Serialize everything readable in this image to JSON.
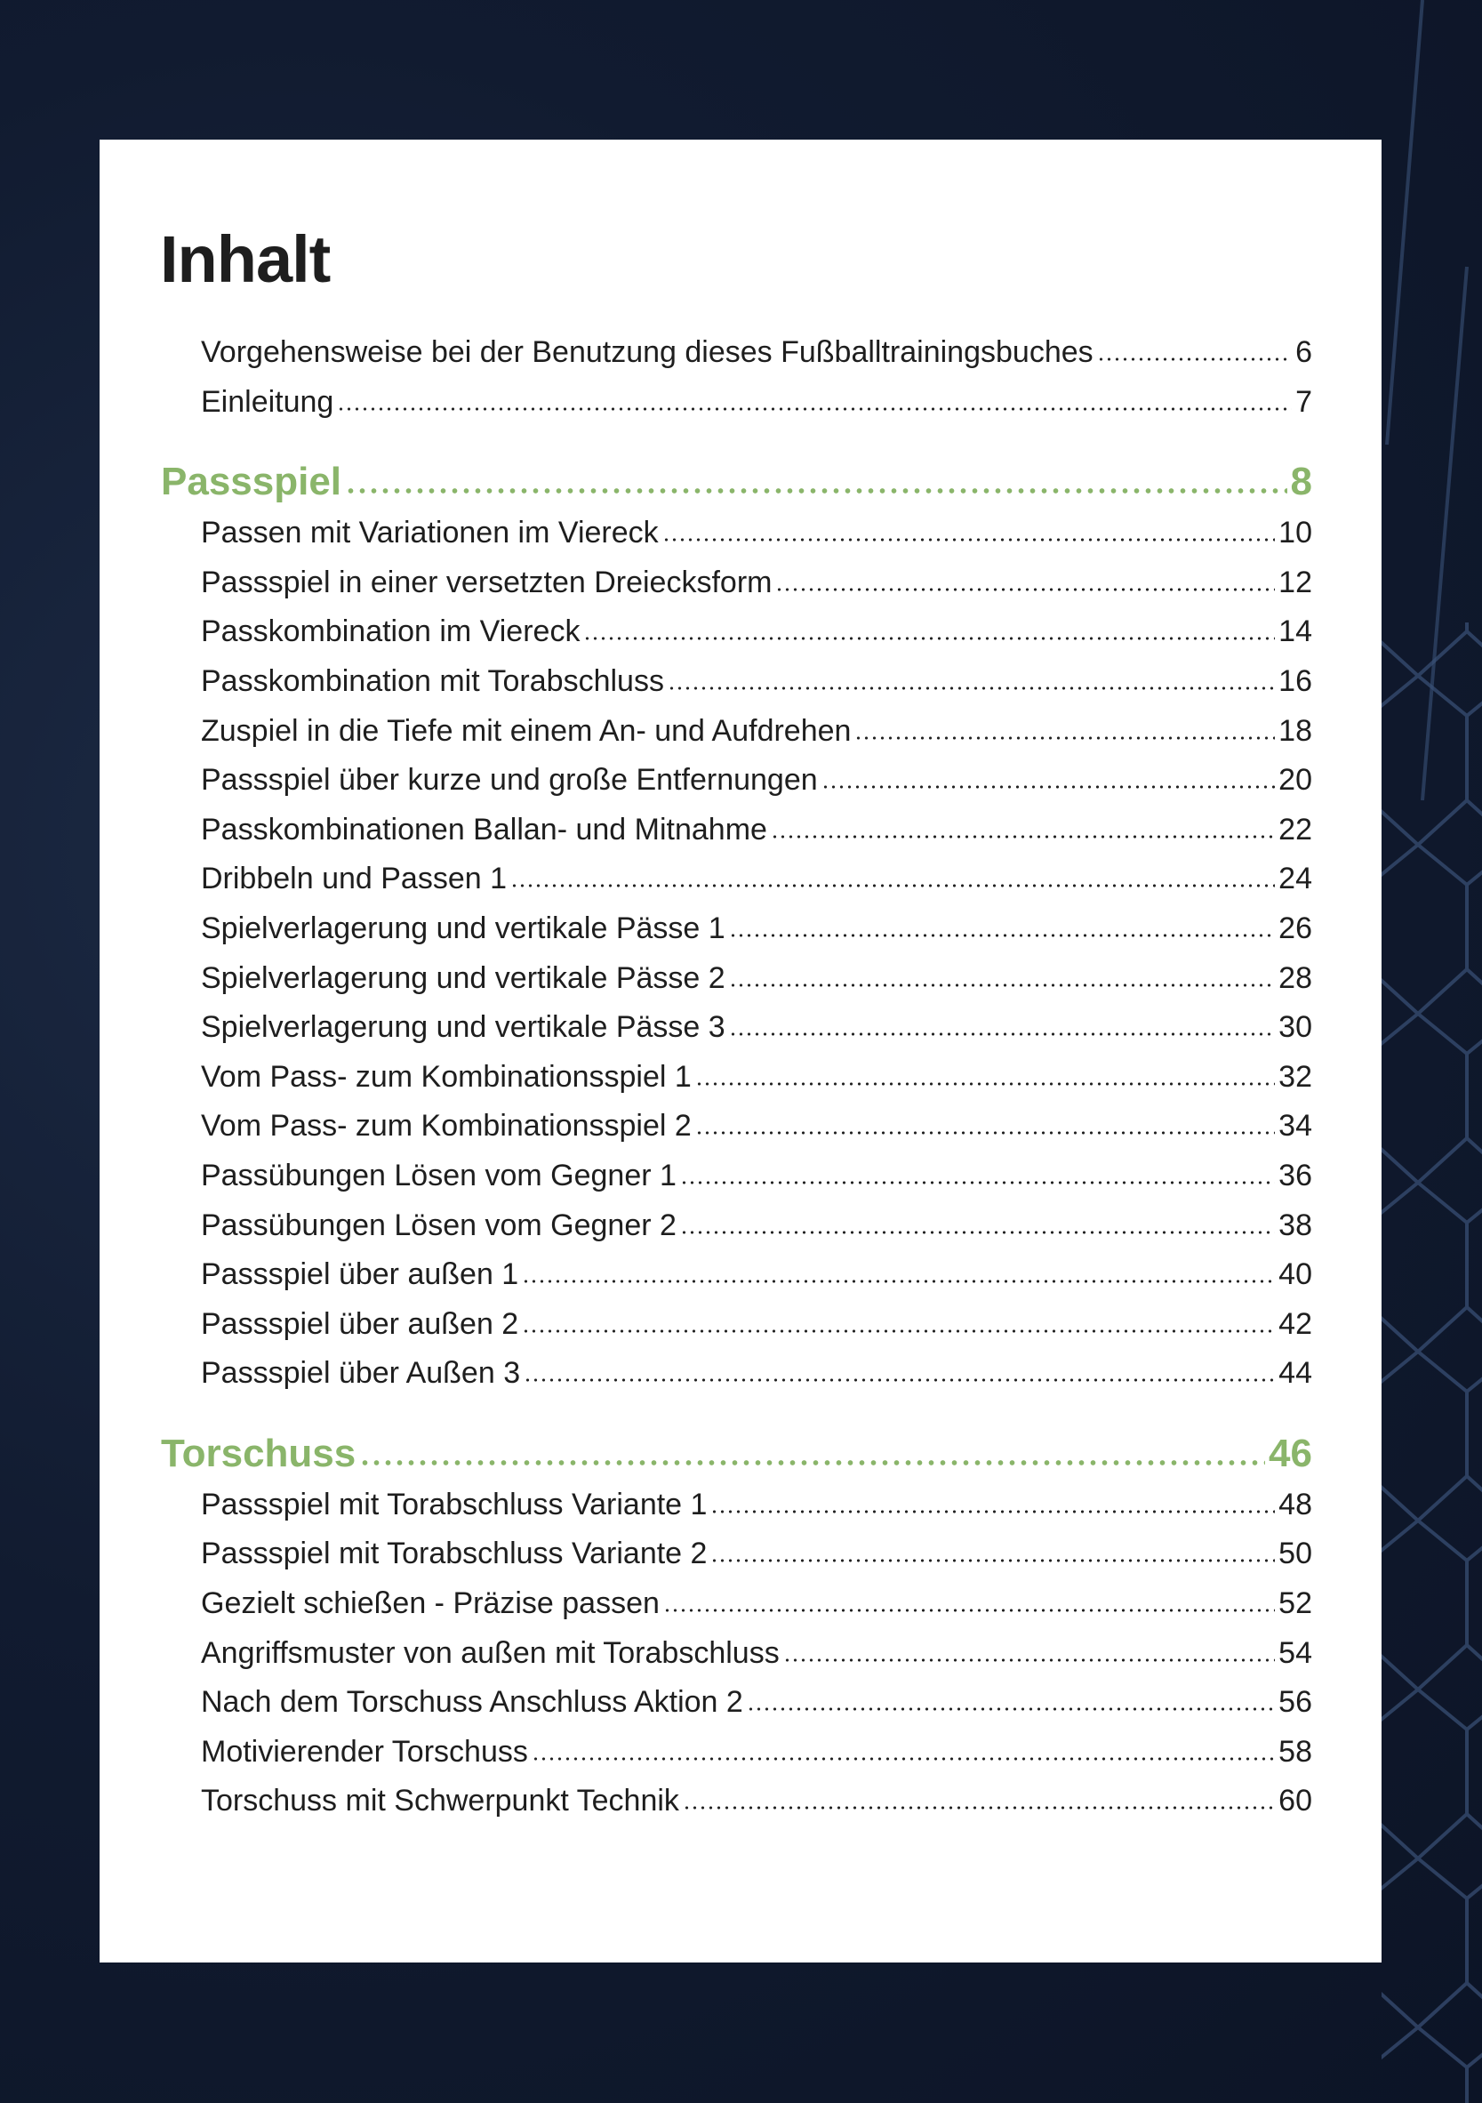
{
  "title": "Inhalt",
  "colors": {
    "section": "#8ab56a",
    "text": "#1e1e1e",
    "background": "#111b30"
  },
  "intro": [
    {
      "label": "Vorgehensweise bei der Benutzung dieses Fußballtrainingsbuches",
      "page": "6"
    },
    {
      "label": "Einleitung",
      "page": "7"
    }
  ],
  "sections": [
    {
      "label": "Passspiel",
      "page": "8",
      "entries": [
        {
          "label": "Passen mit Variationen im Viereck",
          "page": "10"
        },
        {
          "label": "Passspiel in einer versetzten Dreiecksform",
          "page": "12"
        },
        {
          "label": "Passkombination im Viereck",
          "page": "14"
        },
        {
          "label": "Passkombination mit Torabschluss",
          "page": "16"
        },
        {
          "label": "Zuspiel in die Tiefe mit einem An- und Aufdrehen",
          "page": "18"
        },
        {
          "label": "Passspiel über kurze und große Entfernungen",
          "page": "20"
        },
        {
          "label": "Passkombinationen Ballan- und Mitnahme",
          "page": "22"
        },
        {
          "label": "Dribbeln und Passen 1",
          "page": "24"
        },
        {
          "label": "Spielverlagerung und vertikale Pässe 1",
          "page": "26"
        },
        {
          "label": "Spielverlagerung und vertikale Pässe 2",
          "page": "28"
        },
        {
          "label": "Spielverlagerung und vertikale Pässe 3",
          "page": "30"
        },
        {
          "label": "Vom Pass- zum Kombinationsspiel 1",
          "page": "32"
        },
        {
          "label": "Vom Pass- zum Kombinationsspiel 2",
          "page": "34"
        },
        {
          "label": "Passübungen Lösen vom Gegner 1",
          "page": "36"
        },
        {
          "label": "Passübungen Lösen vom Gegner 2",
          "page": "38"
        },
        {
          "label": "Passspiel über außen 1",
          "page": "40"
        },
        {
          "label": "Passspiel über außen 2",
          "page": "42"
        },
        {
          "label": "Passspiel über Außen 3",
          "page": "44"
        }
      ]
    },
    {
      "label": "Torschuss",
      "page": "46",
      "entries": [
        {
          "label": "Passspiel mit Torabschluss Variante 1",
          "page": "48"
        },
        {
          "label": "Passspiel mit Torabschluss Variante 2",
          "page": "50"
        },
        {
          "label": "Gezielt schießen - Präzise passen",
          "page": "52"
        },
        {
          "label": "Angriffsmuster von außen mit Torabschluss",
          "page": "54"
        },
        {
          "label": "Nach dem Torschuss Anschluss Aktion 2",
          "page": "56"
        },
        {
          "label": "Motivierender Torschuss",
          "page": "58"
        },
        {
          "label": "Torschuss mit Schwerpunkt Technik",
          "page": "60"
        }
      ]
    }
  ]
}
